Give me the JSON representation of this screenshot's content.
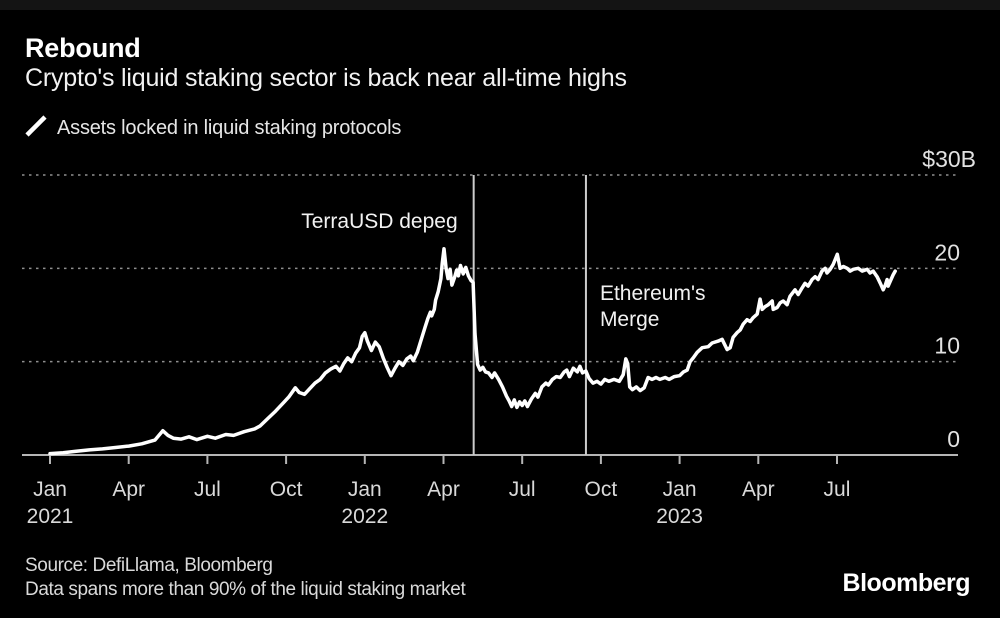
{
  "header": {
    "title": "Rebound",
    "subtitle": "Crypto's liquid staking sector is back near all-time highs"
  },
  "legend": {
    "marker_icon": "line-series-stroke-icon",
    "label": "Assets locked in liquid staking protocols"
  },
  "footer": {
    "source": "Source: DefiLlama, Bloomberg",
    "note": "Data spans more than 90% of the liquid staking market",
    "logo": "Bloomberg"
  },
  "colors": {
    "background": "#000000",
    "line": "#ffffff",
    "grid": "#8f8f8f",
    "axis": "#b5b5b5",
    "tick_label": "#d9d9d9",
    "annotation_line": "#cccccc",
    "annotation_text": "#f2f2f2"
  },
  "chart_data": {
    "type": "line",
    "title": "Rebound",
    "subtitle": "Crypto's liquid staking sector is back near all-time highs",
    "ylabel": "",
    "xlabel": "",
    "unit": "billions USD",
    "ylim": [
      0,
      30
    ],
    "grid": "horizontal-dotted",
    "legend_position": "top-left",
    "x_unit": "months since Jan 2021",
    "x_ticks": [
      {
        "t": 0,
        "label": "Jan",
        "year": "2021"
      },
      {
        "t": 3,
        "label": "Apr",
        "year": ""
      },
      {
        "t": 6,
        "label": "Jul",
        "year": ""
      },
      {
        "t": 9,
        "label": "Oct",
        "year": ""
      },
      {
        "t": 12,
        "label": "Jan",
        "year": "2022"
      },
      {
        "t": 15,
        "label": "Apr",
        "year": ""
      },
      {
        "t": 18,
        "label": "Jul",
        "year": ""
      },
      {
        "t": 21,
        "label": "Oct",
        "year": ""
      },
      {
        "t": 24,
        "label": "Jan",
        "year": "2023"
      },
      {
        "t": 27,
        "label": "Apr",
        "year": ""
      },
      {
        "t": 30,
        "label": "Jul",
        "year": ""
      }
    ],
    "y_ticks": [
      {
        "value": 30,
        "label": "$30B"
      },
      {
        "value": 20,
        "label": "20"
      },
      {
        "value": 10,
        "label": "10"
      },
      {
        "value": 0,
        "label": "0"
      }
    ],
    "annotations": [
      {
        "label": "TerraUSD depeg",
        "lines": [
          "TerraUSD depeg"
        ],
        "t": 16.15,
        "text_side": "left"
      },
      {
        "label": "Ethereum's Merge",
        "lines": [
          "Ethereum's",
          "Merge"
        ],
        "t": 20.43,
        "text_side": "right"
      }
    ],
    "series": [
      {
        "name": "Assets locked in liquid staking protocols",
        "points": [
          [
            0,
            0.15
          ],
          [
            0.5,
            0.25
          ],
          [
            1,
            0.4
          ],
          [
            1.5,
            0.55
          ],
          [
            2,
            0.65
          ],
          [
            2.5,
            0.8
          ],
          [
            3,
            0.95
          ],
          [
            3.5,
            1.2
          ],
          [
            4,
            1.6
          ],
          [
            4.3,
            2.6
          ],
          [
            4.5,
            2.1
          ],
          [
            4.7,
            1.8
          ],
          [
            5,
            1.7
          ],
          [
            5.3,
            1.95
          ],
          [
            5.6,
            1.65
          ],
          [
            6,
            2.0
          ],
          [
            6.3,
            1.8
          ],
          [
            6.7,
            2.2
          ],
          [
            7,
            2.1
          ],
          [
            7.4,
            2.5
          ],
          [
            7.8,
            2.8
          ],
          [
            8,
            3.1
          ],
          [
            8.3,
            3.9
          ],
          [
            8.6,
            4.7
          ],
          [
            8.9,
            5.6
          ],
          [
            9.1,
            6.2
          ],
          [
            9.35,
            7.2
          ],
          [
            9.5,
            6.7
          ],
          [
            9.7,
            6.5
          ],
          [
            9.9,
            7.1
          ],
          [
            10.1,
            7.7
          ],
          [
            10.3,
            8.1
          ],
          [
            10.5,
            8.8
          ],
          [
            10.7,
            9.2
          ],
          [
            10.9,
            9.5
          ],
          [
            11.05,
            9.0
          ],
          [
            11.2,
            9.8
          ],
          [
            11.35,
            10.4
          ],
          [
            11.5,
            10.0
          ],
          [
            11.65,
            10.9
          ],
          [
            11.8,
            11.5
          ],
          [
            11.9,
            12.7
          ],
          [
            12,
            13.1
          ],
          [
            12.1,
            12.2
          ],
          [
            12.25,
            11.2
          ],
          [
            12.4,
            12.1
          ],
          [
            12.55,
            11.6
          ],
          [
            12.7,
            10.4
          ],
          [
            12.85,
            9.4
          ],
          [
            13,
            8.5
          ],
          [
            13.15,
            9.3
          ],
          [
            13.3,
            10.0
          ],
          [
            13.45,
            9.6
          ],
          [
            13.6,
            10.3
          ],
          [
            13.75,
            10.6
          ],
          [
            13.85,
            10.1
          ],
          [
            14,
            11.0
          ],
          [
            14.1,
            11.9
          ],
          [
            14.2,
            12.8
          ],
          [
            14.3,
            13.7
          ],
          [
            14.4,
            14.6
          ],
          [
            14.5,
            15.3
          ],
          [
            14.55,
            14.9
          ],
          [
            14.65,
            15.6
          ],
          [
            14.7,
            16.6
          ],
          [
            14.8,
            17.5
          ],
          [
            14.9,
            18.9
          ],
          [
            14.95,
            20.5
          ],
          [
            15.02,
            22.1
          ],
          [
            15.1,
            20.0
          ],
          [
            15.17,
            18.9
          ],
          [
            15.25,
            19.9
          ],
          [
            15.32,
            18.2
          ],
          [
            15.42,
            19.0
          ],
          [
            15.5,
            19.8
          ],
          [
            15.57,
            19.2
          ],
          [
            15.65,
            20.3
          ],
          [
            15.75,
            19.4
          ],
          [
            15.85,
            20.1
          ],
          [
            15.95,
            19.2
          ],
          [
            16.05,
            18.7
          ],
          [
            16.13,
            18.5
          ],
          [
            16.2,
            13.0
          ],
          [
            16.3,
            9.7
          ],
          [
            16.4,
            9.1
          ],
          [
            16.5,
            9.4
          ],
          [
            16.6,
            8.9
          ],
          [
            16.72,
            8.8
          ],
          [
            16.85,
            8.3
          ],
          [
            16.95,
            8.8
          ],
          [
            17.1,
            8.1
          ],
          [
            17.25,
            7.3
          ],
          [
            17.4,
            6.3
          ],
          [
            17.5,
            5.8
          ],
          [
            17.6,
            5.2
          ],
          [
            17.7,
            5.9
          ],
          [
            17.8,
            5.1
          ],
          [
            17.9,
            5.7
          ],
          [
            18,
            5.3
          ],
          [
            18.1,
            5.8
          ],
          [
            18.2,
            5.2
          ],
          [
            18.35,
            6.0
          ],
          [
            18.5,
            6.6
          ],
          [
            18.6,
            6.2
          ],
          [
            18.75,
            7.3
          ],
          [
            18.9,
            7.7
          ],
          [
            19,
            7.5
          ],
          [
            19.15,
            8.1
          ],
          [
            19.3,
            8.4
          ],
          [
            19.45,
            8.3
          ],
          [
            19.6,
            8.9
          ],
          [
            19.7,
            9.1
          ],
          [
            19.8,
            8.4
          ],
          [
            19.95,
            9.3
          ],
          [
            20.1,
            8.9
          ],
          [
            20.2,
            9.5
          ],
          [
            20.3,
            8.8
          ],
          [
            20.43,
            9.0
          ],
          [
            20.55,
            8.2
          ],
          [
            20.7,
            7.7
          ],
          [
            20.85,
            7.9
          ],
          [
            21,
            7.6
          ],
          [
            21.15,
            8.1
          ],
          [
            21.3,
            7.9
          ],
          [
            21.5,
            8.1
          ],
          [
            21.7,
            7.9
          ],
          [
            21.85,
            8.6
          ],
          [
            21.95,
            10.3
          ],
          [
            22.02,
            9.8
          ],
          [
            22.1,
            7.3
          ],
          [
            22.2,
            7.0
          ],
          [
            22.35,
            7.3
          ],
          [
            22.5,
            6.9
          ],
          [
            22.65,
            7.2
          ],
          [
            22.8,
            8.3
          ],
          [
            22.95,
            8.1
          ],
          [
            23.1,
            8.3
          ],
          [
            23.25,
            8.1
          ],
          [
            23.45,
            8.3
          ],
          [
            23.6,
            8.1
          ],
          [
            23.8,
            8.4
          ],
          [
            24,
            8.5
          ],
          [
            24.15,
            8.9
          ],
          [
            24.29,
            9.1
          ],
          [
            24.4,
            10.0
          ],
          [
            24.52,
            10.4
          ],
          [
            24.67,
            11.0
          ],
          [
            24.86,
            11.5
          ],
          [
            25.09,
            11.6
          ],
          [
            25.24,
            12.0
          ],
          [
            25.47,
            12.2
          ],
          [
            25.62,
            12.4
          ],
          [
            25.81,
            11.3
          ],
          [
            25.93,
            11.5
          ],
          [
            26.04,
            12.6
          ],
          [
            26.19,
            13.1
          ],
          [
            26.31,
            13.4
          ],
          [
            26.42,
            14.0
          ],
          [
            26.57,
            14.5
          ],
          [
            26.69,
            14.3
          ],
          [
            26.8,
            14.7
          ],
          [
            26.96,
            15.1
          ],
          [
            27.07,
            16.7
          ],
          [
            27.15,
            15.6
          ],
          [
            27.26,
            15.9
          ],
          [
            27.38,
            16.1
          ],
          [
            27.53,
            16.5
          ],
          [
            27.57,
            15.6
          ],
          [
            27.72,
            15.8
          ],
          [
            27.83,
            16.3
          ],
          [
            27.95,
            16.5
          ],
          [
            28.1,
            16.1
          ],
          [
            28.21,
            17.0
          ],
          [
            28.4,
            17.7
          ],
          [
            28.52,
            17.2
          ],
          [
            28.67,
            17.9
          ],
          [
            28.78,
            18.4
          ],
          [
            28.9,
            18.1
          ],
          [
            29.05,
            18.8
          ],
          [
            29.17,
            19.1
          ],
          [
            29.28,
            18.8
          ],
          [
            29.43,
            19.7
          ],
          [
            29.55,
            20.0
          ],
          [
            29.62,
            19.5
          ],
          [
            29.74,
            19.9
          ],
          [
            29.85,
            20.4
          ],
          [
            30.01,
            21.5
          ],
          [
            30.12,
            20.0
          ],
          [
            30.24,
            20.2
          ],
          [
            30.39,
            20.0
          ],
          [
            30.5,
            19.7
          ],
          [
            30.62,
            19.9
          ],
          [
            30.81,
            20.0
          ],
          [
            30.96,
            19.7
          ],
          [
            31.15,
            19.9
          ],
          [
            31.26,
            19.5
          ],
          [
            31.38,
            19.7
          ],
          [
            31.53,
            19.1
          ],
          [
            31.65,
            18.4
          ],
          [
            31.76,
            17.7
          ],
          [
            31.84,
            18.2
          ],
          [
            31.91,
            18.8
          ],
          [
            31.95,
            18.1
          ],
          [
            32.03,
            18.6
          ],
          [
            32.14,
            19.3
          ],
          [
            32.22,
            19.7
          ]
        ]
      }
    ]
  }
}
